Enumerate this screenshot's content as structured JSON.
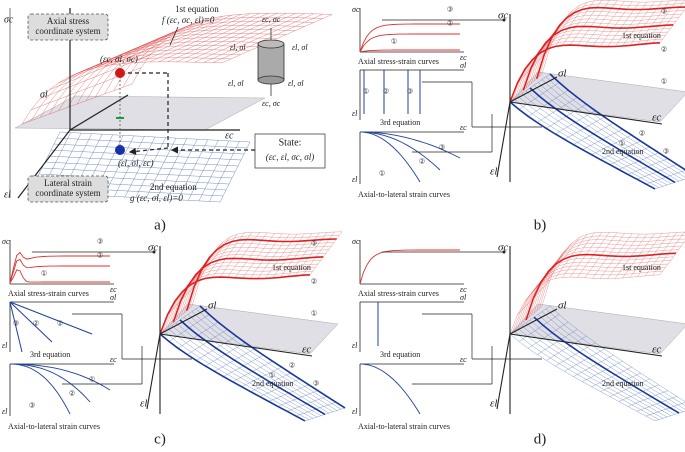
{
  "panel_a": {
    "label": "a)",
    "sigma_c": "σc",
    "sigma_l": "σl",
    "eps_c": "εc",
    "eps_l": "εl",
    "axial_box": [
      "Axial stress",
      "coordinate system"
    ],
    "lateral_box": [
      "Lateral strain",
      "coordinate system"
    ],
    "eq1": [
      "1st equation",
      "f (εc, σc, εl)=0"
    ],
    "eq2": [
      "2nd equation",
      "g (εc, σl, εl)=0"
    ],
    "point_top": "(εc, σl, σc)",
    "point_bottom": "(εl, σl, εc)",
    "state": [
      "State:",
      "(εc, εl, σc, σl)"
    ],
    "cylinder": [
      "εc, σc",
      "εl, σl",
      "εl, σl",
      "εl, σl",
      "εl, σl",
      "εc, σc"
    ]
  },
  "panel_b": {
    "label": "b)",
    "stress_strain": {
      "y": "σc",
      "x": "εc",
      "caption": "Axial stress-strain curves",
      "marks": [
        "③",
        "②",
        "①"
      ]
    },
    "lateral": {
      "y": "εl",
      "x": "σl",
      "caption": "3rd equation",
      "marks": [
        "①",
        "②",
        "③"
      ]
    },
    "axial_lateral": {
      "y": "εl",
      "x": "εc",
      "caption": "Axial-to-lateral strain curves",
      "marks": [
        "①",
        "②",
        "③"
      ]
    },
    "main": {
      "sigma_c": "σc",
      "sigma_l": "σl",
      "eps_c": "εc",
      "eps_l": "εl",
      "eq1": "1st equation",
      "eq2": "2nd equation",
      "marks": [
        "③",
        "②",
        "①",
        "①",
        "②",
        "③"
      ]
    }
  },
  "panel_c": {
    "label": "c)",
    "stress_strain": {
      "y": "σc",
      "x": "εc",
      "caption": "Axial stress-strain curves",
      "marks": [
        "③",
        "②",
        "①"
      ]
    },
    "lateral": {
      "y": "εl",
      "x": "σl",
      "caption": "3rd equation",
      "marks": [
        "③",
        "②",
        "①"
      ]
    },
    "axial_lateral": {
      "y": "εl",
      "x": "εc",
      "caption": "Axial-to-lateral strain curves",
      "marks": [
        "③",
        "②",
        "①"
      ]
    },
    "main": {
      "sigma_c": "σc",
      "sigma_l": "σl",
      "eps_c": "εc",
      "eps_l": "εl",
      "eq1": "1st equation",
      "eq2": "2nd equation",
      "marks": [
        "③",
        "②",
        "①",
        "①",
        "②",
        "③"
      ]
    }
  },
  "panel_d": {
    "label": "d)",
    "stress_strain": {
      "y": "σc",
      "x": "εc",
      "caption": "Axial stress-strain curves"
    },
    "lateral": {
      "y": "εl",
      "x": "σl",
      "caption": "3rd equation"
    },
    "axial_lateral": {
      "y": "εl",
      "x": "εc",
      "caption": "Axial-to-lateral strain curves"
    },
    "main": {
      "sigma_c": "σc",
      "sigma_l": "σl",
      "eps_c": "εc",
      "eps_l": "εl",
      "eq1": "1st equation",
      "eq2": "2nd equation"
    }
  }
}
